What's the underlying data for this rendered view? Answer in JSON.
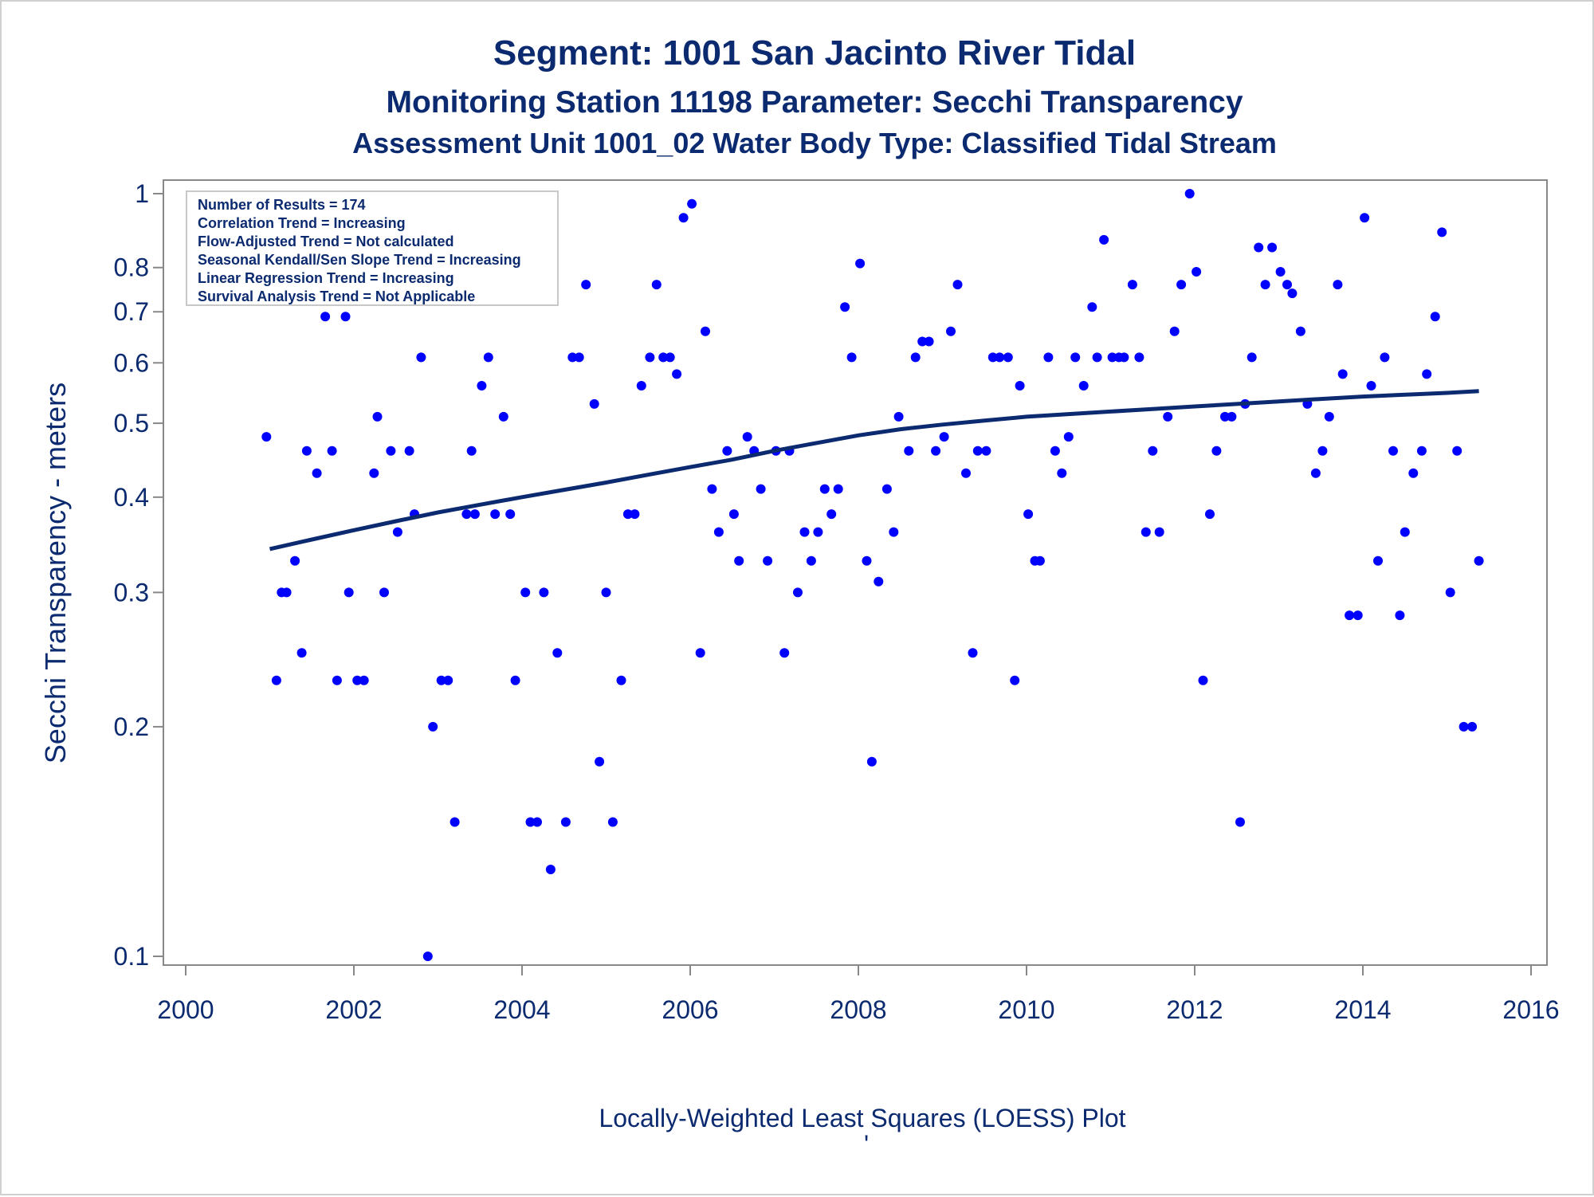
{
  "chart_data": {
    "type": "scatter",
    "title": "Segment: 1001  San Jacinto River Tidal",
    "subtitle": "Monitoring Station 11198 Parameter: Secchi Transparency",
    "subtitle2": "Assessment Unit 1001_02   Water Body Type: Classified Tidal Stream",
    "xlabel": "Locally-Weighted Least Squares (LOESS) Plot",
    "ylabel": "Secchi Transparency - meters",
    "footnote_mark": "'",
    "xlim": [
      2000,
      2016
    ],
    "ylim": [
      0.1,
      1
    ],
    "y_scale": "log",
    "x_ticks": [
      {
        "v": 2000,
        "label": "2000"
      },
      {
        "v": 2002,
        "label": "2002"
      },
      {
        "v": 2004,
        "label": "2004"
      },
      {
        "v": 2006,
        "label": "2006"
      },
      {
        "v": 2008,
        "label": "2008"
      },
      {
        "v": 2010,
        "label": "2010"
      },
      {
        "v": 2012,
        "label": "2012"
      },
      {
        "v": 2014,
        "label": "2014"
      },
      {
        "v": 2016,
        "label": "2016"
      }
    ],
    "y_ticks": [
      {
        "v": 0.1,
        "label": "0.1"
      },
      {
        "v": 0.2,
        "label": "0.2"
      },
      {
        "v": 0.3,
        "label": "0.3"
      },
      {
        "v": 0.4,
        "label": "0.4"
      },
      {
        "v": 0.5,
        "label": "0.5"
      },
      {
        "v": 0.6,
        "label": "0.6"
      },
      {
        "v": 0.7,
        "label": "0.7"
      },
      {
        "v": 0.8,
        "label": "0.8"
      },
      {
        "v": 1,
        "label": "1"
      }
    ],
    "grid": false,
    "info_box": {
      "placement": "top-left",
      "lines": [
        "Number of Results = 174",
        "Correlation Trend = Increasing",
        "Flow-Adjusted Trend = Not calculated",
        "Seasonal Kendall/Sen Slope Trend = Increasing",
        "Linear Regression Trend = Increasing",
        "Survival Analysis Trend = Not Applicable"
      ]
    },
    "colors": {
      "points": "#0000ff",
      "loess": "#0b2a6f",
      "text": "#0b2a6f",
      "axis": "#888888"
    },
    "points": [
      [
        2000.96,
        0.48
      ],
      [
        2001.08,
        0.23
      ],
      [
        2001.14,
        0.3
      ],
      [
        2001.2,
        0.3
      ],
      [
        2001.3,
        0.33
      ],
      [
        2001.38,
        0.25
      ],
      [
        2001.44,
        0.46
      ],
      [
        2001.56,
        0.43
      ],
      [
        2001.66,
        0.69
      ],
      [
        2001.74,
        0.46
      ],
      [
        2001.8,
        0.23
      ],
      [
        2001.9,
        0.69
      ],
      [
        2001.94,
        0.3
      ],
      [
        2002.04,
        0.23
      ],
      [
        2002.12,
        0.23
      ],
      [
        2002.24,
        0.43
      ],
      [
        2002.28,
        0.51
      ],
      [
        2002.36,
        0.3
      ],
      [
        2002.44,
        0.46
      ],
      [
        2002.52,
        0.36
      ],
      [
        2002.66,
        0.46
      ],
      [
        2002.72,
        0.38
      ],
      [
        2002.8,
        0.61
      ],
      [
        2002.88,
        0.1
      ],
      [
        2002.94,
        0.2
      ],
      [
        2003.04,
        0.23
      ],
      [
        2003.12,
        0.23
      ],
      [
        2003.2,
        0.15
      ],
      [
        2003.34,
        0.38
      ],
      [
        2003.4,
        0.46
      ],
      [
        2003.44,
        0.38
      ],
      [
        2003.52,
        0.56
      ],
      [
        2003.6,
        0.61
      ],
      [
        2003.68,
        0.38
      ],
      [
        2003.78,
        0.51
      ],
      [
        2003.86,
        0.38
      ],
      [
        2003.92,
        0.23
      ],
      [
        2004.04,
        0.3
      ],
      [
        2004.1,
        0.15
      ],
      [
        2004.18,
        0.15
      ],
      [
        2004.26,
        0.3
      ],
      [
        2004.34,
        0.13
      ],
      [
        2004.42,
        0.25
      ],
      [
        2004.52,
        0.15
      ],
      [
        2004.6,
        0.61
      ],
      [
        2004.68,
        0.61
      ],
      [
        2004.76,
        0.76
      ],
      [
        2004.86,
        0.53
      ],
      [
        2004.92,
        0.18
      ],
      [
        2005.0,
        0.3
      ],
      [
        2005.08,
        0.15
      ],
      [
        2005.18,
        0.23
      ],
      [
        2005.26,
        0.38
      ],
      [
        2005.34,
        0.38
      ],
      [
        2005.42,
        0.56
      ],
      [
        2005.52,
        0.61
      ],
      [
        2005.6,
        0.76
      ],
      [
        2005.68,
        0.61
      ],
      [
        2005.76,
        0.61
      ],
      [
        2005.84,
        0.58
      ],
      [
        2005.92,
        0.93
      ],
      [
        2006.02,
        0.97
      ],
      [
        2006.12,
        0.25
      ],
      [
        2006.18,
        0.66
      ],
      [
        2006.26,
        0.41
      ],
      [
        2006.34,
        0.36
      ],
      [
        2006.44,
        0.46
      ],
      [
        2006.52,
        0.38
      ],
      [
        2006.58,
        0.33
      ],
      [
        2006.68,
        0.48
      ],
      [
        2006.76,
        0.46
      ],
      [
        2006.84,
        0.41
      ],
      [
        2006.92,
        0.33
      ],
      [
        2007.02,
        0.46
      ],
      [
        2007.12,
        0.25
      ],
      [
        2007.18,
        0.46
      ],
      [
        2007.28,
        0.3
      ],
      [
        2007.36,
        0.36
      ],
      [
        2007.44,
        0.33
      ],
      [
        2007.52,
        0.36
      ],
      [
        2007.6,
        0.41
      ],
      [
        2007.68,
        0.38
      ],
      [
        2007.76,
        0.41
      ],
      [
        2007.84,
        0.71
      ],
      [
        2007.92,
        0.61
      ],
      [
        2008.02,
        0.81
      ],
      [
        2008.1,
        0.33
      ],
      [
        2008.16,
        0.18
      ],
      [
        2008.24,
        0.31
      ],
      [
        2008.34,
        0.41
      ],
      [
        2008.42,
        0.36
      ],
      [
        2008.48,
        0.51
      ],
      [
        2008.6,
        0.46
      ],
      [
        2008.68,
        0.61
      ],
      [
        2008.76,
        0.64
      ],
      [
        2008.84,
        0.64
      ],
      [
        2008.92,
        0.46
      ],
      [
        2009.02,
        0.48
      ],
      [
        2009.1,
        0.66
      ],
      [
        2009.18,
        0.76
      ],
      [
        2009.28,
        0.43
      ],
      [
        2009.36,
        0.25
      ],
      [
        2009.42,
        0.46
      ],
      [
        2009.52,
        0.46
      ],
      [
        2009.6,
        0.61
      ],
      [
        2009.68,
        0.61
      ],
      [
        2009.78,
        0.61
      ],
      [
        2009.86,
        0.23
      ],
      [
        2009.92,
        0.56
      ],
      [
        2010.02,
        0.38
      ],
      [
        2010.1,
        0.33
      ],
      [
        2010.16,
        0.33
      ],
      [
        2010.26,
        0.61
      ],
      [
        2010.34,
        0.46
      ],
      [
        2010.42,
        0.43
      ],
      [
        2010.5,
        0.48
      ],
      [
        2010.58,
        0.61
      ],
      [
        2010.68,
        0.56
      ],
      [
        2010.78,
        0.71
      ],
      [
        2010.84,
        0.61
      ],
      [
        2010.92,
        0.87
      ],
      [
        2011.02,
        0.61
      ],
      [
        2011.1,
        0.61
      ],
      [
        2011.16,
        0.61
      ],
      [
        2011.26,
        0.76
      ],
      [
        2011.34,
        0.61
      ],
      [
        2011.42,
        0.36
      ],
      [
        2011.5,
        0.46
      ],
      [
        2011.58,
        0.36
      ],
      [
        2011.68,
        0.51
      ],
      [
        2011.76,
        0.66
      ],
      [
        2011.84,
        0.76
      ],
      [
        2011.94,
        1.0
      ],
      [
        2012.02,
        0.79
      ],
      [
        2012.1,
        0.23
      ],
      [
        2012.18,
        0.38
      ],
      [
        2012.26,
        0.46
      ],
      [
        2012.36,
        0.51
      ],
      [
        2012.44,
        0.51
      ],
      [
        2012.54,
        0.15
      ],
      [
        2012.6,
        0.53
      ],
      [
        2012.68,
        0.61
      ],
      [
        2012.76,
        0.85
      ],
      [
        2012.84,
        0.76
      ],
      [
        2012.92,
        0.85
      ],
      [
        2013.02,
        0.79
      ],
      [
        2013.1,
        0.76
      ],
      [
        2013.16,
        0.74
      ],
      [
        2013.26,
        0.66
      ],
      [
        2013.34,
        0.53
      ],
      [
        2013.44,
        0.43
      ],
      [
        2013.52,
        0.46
      ],
      [
        2013.6,
        0.51
      ],
      [
        2013.7,
        0.76
      ],
      [
        2013.76,
        0.58
      ],
      [
        2013.84,
        0.28
      ],
      [
        2013.94,
        0.28
      ],
      [
        2014.02,
        0.93
      ],
      [
        2014.1,
        0.56
      ],
      [
        2014.18,
        0.33
      ],
      [
        2014.26,
        0.61
      ],
      [
        2014.36,
        0.46
      ],
      [
        2014.44,
        0.28
      ],
      [
        2014.5,
        0.36
      ],
      [
        2014.6,
        0.43
      ],
      [
        2014.7,
        0.46
      ],
      [
        2014.76,
        0.58
      ],
      [
        2014.86,
        0.69
      ],
      [
        2014.94,
        0.89
      ],
      [
        2015.04,
        0.3
      ],
      [
        2015.12,
        0.46
      ],
      [
        2015.2,
        0.2
      ],
      [
        2015.3,
        0.2
      ],
      [
        2015.38,
        0.33
      ]
    ],
    "loess_curve": [
      [
        2001.0,
        0.342
      ],
      [
        2001.5,
        0.352
      ],
      [
        2002.0,
        0.362
      ],
      [
        2002.5,
        0.372
      ],
      [
        2003.0,
        0.382
      ],
      [
        2003.5,
        0.391
      ],
      [
        2004.0,
        0.4
      ],
      [
        2004.5,
        0.409
      ],
      [
        2005.0,
        0.418
      ],
      [
        2005.5,
        0.428
      ],
      [
        2006.0,
        0.438
      ],
      [
        2006.5,
        0.448
      ],
      [
        2007.0,
        0.46
      ],
      [
        2007.5,
        0.471
      ],
      [
        2008.0,
        0.482
      ],
      [
        2008.5,
        0.491
      ],
      [
        2009.0,
        0.498
      ],
      [
        2009.5,
        0.504
      ],
      [
        2010.0,
        0.51
      ],
      [
        2010.5,
        0.514
      ],
      [
        2011.0,
        0.518
      ],
      [
        2011.5,
        0.522
      ],
      [
        2012.0,
        0.526
      ],
      [
        2012.5,
        0.53
      ],
      [
        2013.0,
        0.534
      ],
      [
        2013.5,
        0.538
      ],
      [
        2014.0,
        0.542
      ],
      [
        2014.5,
        0.545
      ],
      [
        2015.0,
        0.548
      ],
      [
        2015.38,
        0.551
      ]
    ]
  }
}
